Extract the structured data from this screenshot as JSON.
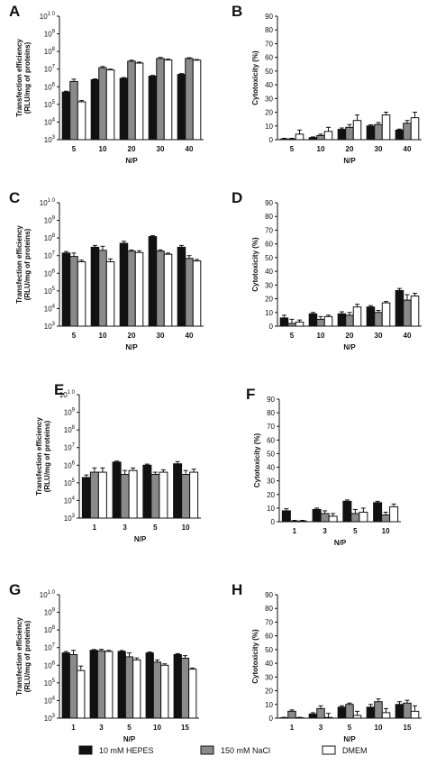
{
  "legend": {
    "items": [
      {
        "label": "10 mM HEPES",
        "color": "#111111"
      },
      {
        "label": "150 mM NaCl",
        "color": "#8a8a8a"
      },
      {
        "label": "DMEM",
        "color": "#ffffff"
      }
    ]
  },
  "chart_data": [
    {
      "panel": "A",
      "type": "bar",
      "scale": "log",
      "ylabel": "Transfection efficiency",
      "ylabel2": "(RLU/mg of proteins)",
      "xlabel": "N/P",
      "categories": [
        "5",
        "10",
        "20",
        "30",
        "40"
      ],
      "ylim": [
        1000,
        10000000000
      ],
      "yticks": [
        {
          "v": 1000,
          "b": "10",
          "e": "3"
        },
        {
          "v": 10000,
          "b": "10",
          "e": "4"
        },
        {
          "v": 100000,
          "b": "10",
          "e": "5"
        },
        {
          "v": 1000000,
          "b": "10",
          "e": "6"
        },
        {
          "v": 10000000,
          "b": "10",
          "e": "7"
        },
        {
          "v": 100000000,
          "b": "10",
          "e": "8"
        },
        {
          "v": 1000000000,
          "b": "10",
          "e": "9"
        },
        {
          "v": 10000000000,
          "b": "10",
          "e": "1 0"
        }
      ],
      "series": [
        {
          "values": [
            500000,
            2500000,
            3000000,
            4000000,
            5000000
          ],
          "errors": [
            60000,
            300000,
            300000,
            400000,
            600000
          ]
        },
        {
          "values": [
            2000000,
            12000000,
            28000000,
            40000000,
            40000000
          ],
          "errors": [
            700000,
            2000000,
            4000000,
            6000000,
            4000000
          ]
        },
        {
          "values": [
            140000,
            9000000,
            22000000,
            33000000,
            32000000
          ],
          "errors": [
            25000,
            1000000,
            3000000,
            4000000,
            3000000
          ]
        }
      ]
    },
    {
      "panel": "B",
      "type": "bar",
      "scale": "linear",
      "ylabel": "Cytotoxicity (%)",
      "xlabel": "N/P",
      "categories": [
        "5",
        "10",
        "20",
        "30",
        "40"
      ],
      "ylim": [
        0,
        90
      ],
      "yticks": [
        0,
        10,
        20,
        30,
        40,
        50,
        60,
        70,
        80,
        90
      ],
      "series": [
        {
          "values": [
            0.5,
            1.5,
            7.5,
            10,
            7
          ],
          "errors": [
            0.5,
            0.5,
            1,
            0.8,
            0.7
          ]
        },
        {
          "values": [
            0.5,
            3,
            9,
            11,
            12
          ],
          "errors": [
            0.5,
            1,
            2,
            1.5,
            2
          ]
        },
        {
          "values": [
            4,
            6,
            14,
            18,
            16
          ],
          "errors": [
            3,
            3,
            4,
            2,
            4
          ]
        }
      ]
    },
    {
      "panel": "C",
      "type": "bar",
      "scale": "log",
      "ylabel": "Transfection efficiency",
      "ylabel2": "(RLU/mg of proteins)",
      "xlabel": "N/P",
      "categories": [
        "5",
        "10",
        "20",
        "30",
        "40"
      ],
      "ylim": [
        1000,
        10000000000
      ],
      "yticks": [
        {
          "v": 1000,
          "b": "10",
          "e": "3"
        },
        {
          "v": 10000,
          "b": "10",
          "e": "4"
        },
        {
          "v": 100000,
          "b": "10",
          "e": "5"
        },
        {
          "v": 1000000,
          "b": "10",
          "e": "6"
        },
        {
          "v": 10000000,
          "b": "10",
          "e": "7"
        },
        {
          "v": 100000000,
          "b": "10",
          "e": "8"
        },
        {
          "v": 1000000000,
          "b": "10",
          "e": "9"
        },
        {
          "v": 10000000000,
          "b": "10",
          "e": "1 0"
        }
      ],
      "series": [
        {
          "values": [
            14000000,
            30000000,
            50000000,
            120000000,
            30000000
          ],
          "errors": [
            3000000,
            8000000,
            15000000,
            15000000,
            8000000
          ]
        },
        {
          "values": [
            9000000,
            20000000,
            18000000,
            18000000,
            7000000
          ],
          "errors": [
            5000000,
            14000000,
            3000000,
            3000000,
            3000000
          ]
        },
        {
          "values": [
            4500000,
            4500000,
            15000000,
            12000000,
            5000000
          ],
          "errors": [
            1000000,
            2000000,
            4000000,
            2000000,
            1000000
          ]
        }
      ]
    },
    {
      "panel": "D",
      "type": "bar",
      "scale": "linear",
      "ylabel": "Cytotoxicity (%)",
      "xlabel": "N/P",
      "categories": [
        "5",
        "10",
        "20",
        "30",
        "40"
      ],
      "ylim": [
        0,
        90
      ],
      "yticks": [
        0,
        10,
        20,
        30,
        40,
        50,
        60,
        70,
        80,
        90
      ],
      "series": [
        {
          "values": [
            6,
            9,
            9,
            14,
            26
          ],
          "errors": [
            2,
            1,
            1.5,
            1,
            1.5
          ]
        },
        {
          "values": [
            2,
            5,
            8,
            10,
            19
          ],
          "errors": [
            3,
            2,
            2,
            1.5,
            4
          ]
        },
        {
          "values": [
            3,
            7,
            14,
            17,
            22
          ],
          "errors": [
            1.5,
            1,
            2,
            1,
            2
          ]
        }
      ]
    },
    {
      "panel": "E",
      "type": "bar",
      "scale": "log",
      "ylabel": "Transfection efficiency",
      "ylabel2": "(RLU/mg of proteins)",
      "xlabel": "N/P",
      "categories": [
        "1",
        "3",
        "5",
        "10"
      ],
      "ylim": [
        1000,
        10000000000
      ],
      "yticks": [
        {
          "v": 1000,
          "b": "10",
          "e": "3"
        },
        {
          "v": 10000,
          "b": "10",
          "e": "4"
        },
        {
          "v": 100000,
          "b": "10",
          "e": "5"
        },
        {
          "v": 1000000,
          "b": "10",
          "e": "6"
        },
        {
          "v": 10000000,
          "b": "10",
          "e": "7"
        },
        {
          "v": 100000000,
          "b": "10",
          "e": "8"
        },
        {
          "v": 1000000000,
          "b": "10",
          "e": "9"
        },
        {
          "v": 10000000000,
          "b": "10",
          "e": "1 0"
        }
      ],
      "series": [
        {
          "values": [
            200000,
            1500000,
            1000000,
            1200000
          ],
          "errors": [
            80000,
            200000,
            150000,
            400000
          ]
        },
        {
          "values": [
            400000,
            300000,
            300000,
            300000
          ],
          "errors": [
            300000,
            200000,
            100000,
            200000
          ]
        },
        {
          "values": [
            400000,
            500000,
            400000,
            400000
          ],
          "errors": [
            300000,
            200000,
            150000,
            200000
          ]
        }
      ]
    },
    {
      "panel": "F",
      "type": "bar",
      "scale": "linear",
      "ylabel": "Cytotoxicity (%)",
      "xlabel": "N/P",
      "categories": [
        "1",
        "3",
        "5",
        "10"
      ],
      "ylim": [
        0,
        90
      ],
      "yticks": [
        0,
        10,
        20,
        30,
        40,
        50,
        60,
        70,
        80,
        90
      ],
      "series": [
        {
          "values": [
            8,
            9,
            15,
            14
          ],
          "errors": [
            1.5,
            1,
            1,
            1
          ]
        },
        {
          "values": [
            0.5,
            6,
            6,
            5
          ],
          "errors": [
            0.5,
            2,
            3,
            2
          ]
        },
        {
          "values": [
            0.5,
            4,
            7,
            11
          ],
          "errors": [
            0.5,
            2,
            3,
            2
          ]
        }
      ]
    },
    {
      "panel": "G",
      "type": "bar",
      "scale": "log",
      "ylabel": "Transfection efficiency",
      "ylabel2": "(RLU/mg of proteins)",
      "xlabel": "N/P",
      "categories": [
        "1",
        "3",
        "5",
        "10",
        "15"
      ],
      "ylim": [
        1000,
        10000000000
      ],
      "yticks": [
        {
          "v": 1000,
          "b": "10",
          "e": "3"
        },
        {
          "v": 10000,
          "b": "10",
          "e": "4"
        },
        {
          "v": 100000,
          "b": "10",
          "e": "5"
        },
        {
          "v": 1000000,
          "b": "10",
          "e": "6"
        },
        {
          "v": 10000000,
          "b": "10",
          "e": "7"
        },
        {
          "v": 100000000,
          "b": "10",
          "e": "8"
        },
        {
          "v": 1000000000,
          "b": "10",
          "e": "9"
        },
        {
          "v": 10000000000,
          "b": "10",
          "e": "1 0"
        }
      ],
      "series": [
        {
          "values": [
            5000000,
            7000000,
            6000000,
            5000000,
            4000000
          ],
          "errors": [
            1000000,
            800000,
            800000,
            600000,
            500000
          ]
        },
        {
          "values": [
            4000000,
            6500000,
            3000000,
            1500000,
            2500000
          ],
          "errors": [
            3000000,
            1500000,
            2000000,
            500000,
            1000000
          ]
        },
        {
          "values": [
            500000,
            6000000,
            2000000,
            1000000,
            600000
          ],
          "errors": [
            400000,
            1000000,
            600000,
            200000,
            100000
          ]
        }
      ]
    },
    {
      "panel": "H",
      "type": "bar",
      "scale": "linear",
      "ylabel": "Cytotoxicity (%)",
      "xlabel": "N/P",
      "categories": [
        "1",
        "3",
        "5",
        "10",
        "15"
      ],
      "ylim": [
        0,
        90
      ],
      "yticks": [
        0,
        10,
        20,
        30,
        40,
        50,
        60,
        70,
        80,
        90
      ],
      "series": [
        {
          "values": [
            0.3,
            3,
            8,
            8,
            10
          ],
          "errors": [
            0.3,
            1,
            1,
            2,
            2
          ]
        },
        {
          "values": [
            5,
            7,
            10,
            12,
            11
          ],
          "errors": [
            1,
            2,
            1,
            2,
            2
          ]
        },
        {
          "values": [
            0.3,
            0.5,
            2,
            4,
            5
          ],
          "errors": [
            0.3,
            3,
            3,
            3,
            4
          ]
        }
      ]
    }
  ]
}
